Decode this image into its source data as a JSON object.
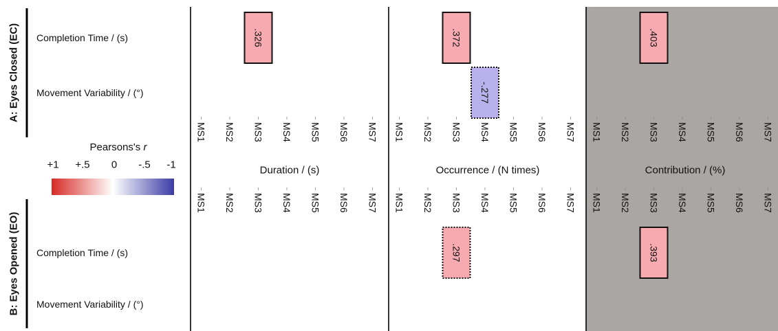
{
  "chart_data": {
    "type": "heatmap",
    "rotated_tick_text": true,
    "panels": [
      {
        "label": "Duration / (s)",
        "shaded": false
      },
      {
        "label": "Occurrence / (N times)",
        "shaded": false
      },
      {
        "label": "Contribution / (%)",
        "shaded": true
      }
    ],
    "columns": [
      "MS1",
      "MS2",
      "MS3",
      "MS4",
      "MS5",
      "MS6",
      "MS7"
    ],
    "groups": [
      {
        "label": "A: Eyes Closed (EC)",
        "rows": [
          "Completion Time / (s)",
          "Movement Variability / (°)"
        ]
      },
      {
        "label": "B: Eyes Opened (EO)",
        "rows": [
          "Completion Time / (s)",
          "Movement Variability / (°)"
        ]
      }
    ],
    "cells": [
      {
        "group": 0,
        "row": 0,
        "panel": 0,
        "col": 2,
        "value": 0.326,
        "label": ".326",
        "border": "solid"
      },
      {
        "group": 0,
        "row": 0,
        "panel": 1,
        "col": 2,
        "value": 0.372,
        "label": ".372",
        "border": "solid"
      },
      {
        "group": 0,
        "row": 0,
        "panel": 2,
        "col": 2,
        "value": 0.403,
        "label": ".403",
        "border": "solid"
      },
      {
        "group": 0,
        "row": 1,
        "panel": 1,
        "col": 3,
        "value": -0.277,
        "label": "-.277",
        "border": "dotted"
      },
      {
        "group": 1,
        "row": 0,
        "panel": 1,
        "col": 2,
        "value": 0.297,
        "label": ".297",
        "border": "dotted"
      },
      {
        "group": 1,
        "row": 0,
        "panel": 2,
        "col": 2,
        "value": 0.393,
        "label": ".393",
        "border": "solid"
      }
    ],
    "legend": {
      "title": "Pearsons's",
      "title_var": "r",
      "tick_labels": [
        "+1",
        "+.5",
        "0",
        "-.5",
        "-1"
      ],
      "colors": {
        "positive": "#d62a25",
        "zero": "#ffffff",
        "negative": "#3b3ba6"
      }
    },
    "colors": {
      "shade": "#a9a6a4",
      "cell_positive": "#f7aab0",
      "cell_negative": "#b9b1ec"
    }
  }
}
